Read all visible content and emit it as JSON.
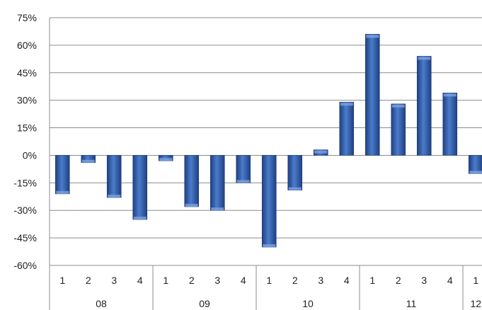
{
  "chart_data": {
    "type": "bar",
    "categories": [
      {
        "quarter": "1",
        "year": "08"
      },
      {
        "quarter": "2",
        "year": "08"
      },
      {
        "quarter": "3",
        "year": "08"
      },
      {
        "quarter": "4",
        "year": "08"
      },
      {
        "quarter": "1",
        "year": "09"
      },
      {
        "quarter": "2",
        "year": "09"
      },
      {
        "quarter": "3",
        "year": "09"
      },
      {
        "quarter": "4",
        "year": "09"
      },
      {
        "quarter": "1",
        "year": "10"
      },
      {
        "quarter": "2",
        "year": "10"
      },
      {
        "quarter": "3",
        "year": "10"
      },
      {
        "quarter": "4",
        "year": "10"
      },
      {
        "quarter": "1",
        "year": "11"
      },
      {
        "quarter": "2",
        "year": "11"
      },
      {
        "quarter": "3",
        "year": "11"
      },
      {
        "quarter": "4",
        "year": "11"
      },
      {
        "quarter": "1",
        "year": "12"
      }
    ],
    "year_groups": [
      {
        "label": "08",
        "count": 4
      },
      {
        "label": "09",
        "count": 4
      },
      {
        "label": "10",
        "count": 4
      },
      {
        "label": "11",
        "count": 4
      },
      {
        "label": "12",
        "count": 1
      }
    ],
    "values": [
      -21,
      -4,
      -23,
      -35,
      -3,
      -28,
      -30,
      -15,
      -50,
      -19,
      3,
      29,
      66,
      28,
      54,
      34,
      -10
    ],
    "unit": "%",
    "ylim": [
      -60,
      75
    ],
    "yticks": [
      -60,
      -45,
      -30,
      -15,
      0,
      15,
      30,
      45,
      60,
      75
    ],
    "ytick_labels": [
      "-60%",
      "-45%",
      "-30%",
      "-15%",
      "0%",
      "15%",
      "30%",
      "45%",
      "60%",
      "75%"
    ],
    "title": "",
    "xlabel": "",
    "ylabel": "",
    "grid": true,
    "legend": "none",
    "colors": {
      "bar_dark": "#1f3f7f",
      "bar_mid": "#3d6fbf",
      "bar_light": "#7fa3df",
      "gridline": "#8c8c8c",
      "axis": "#8c8c8c",
      "text": "#222222"
    }
  }
}
